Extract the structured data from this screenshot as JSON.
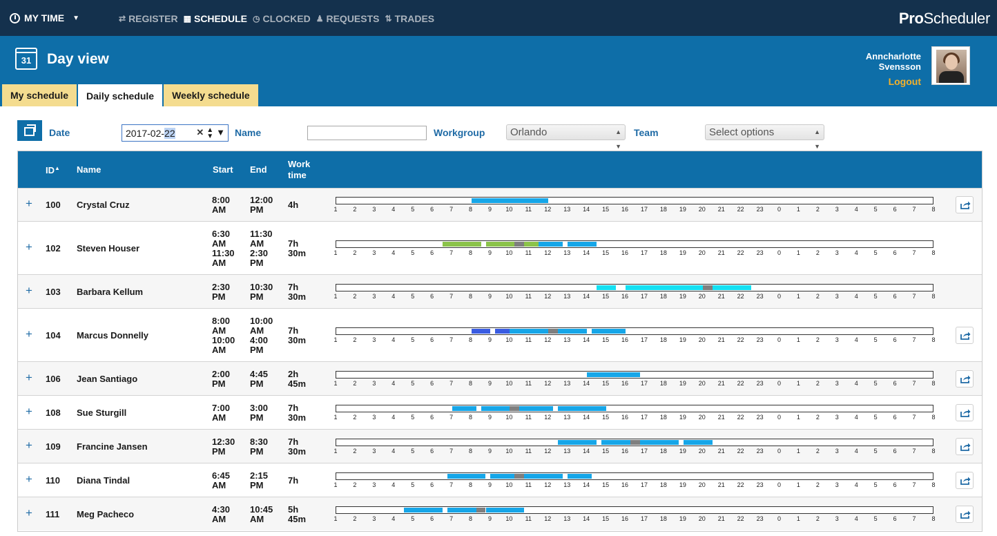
{
  "topbar": {
    "my_time": "MY TIME",
    "nav": [
      {
        "label": "REGISTER",
        "icon": "arrows-icon",
        "glyph": "⇄",
        "active": false
      },
      {
        "label": "SCHEDULE",
        "icon": "calendar-icon",
        "glyph": "▦",
        "active": true
      },
      {
        "label": "CLOCKED",
        "icon": "stopwatch-icon",
        "glyph": "◷",
        "active": false
      },
      {
        "label": "REQUESTS",
        "icon": "person-icon",
        "glyph": "♟",
        "active": false
      },
      {
        "label": "TRADES",
        "icon": "trades-icon",
        "glyph": "⇅",
        "active": false
      }
    ],
    "brand_bold": "Pro",
    "brand_rest": "Scheduler"
  },
  "header": {
    "calendar_day": "31",
    "title": "Day view",
    "user_first": "Anncharlotte",
    "user_last": "Svensson",
    "logout": "Logout"
  },
  "tabs": [
    {
      "label": "My schedule",
      "active": false
    },
    {
      "label": "Daily schedule",
      "active": true
    },
    {
      "label": "Weekly schedule",
      "active": false
    }
  ],
  "filters": {
    "date_label": "Date",
    "date_prefix": "2017-02-",
    "date_selected": "22",
    "name_label": "Name",
    "name_value": "",
    "workgroup_label": "Workgroup",
    "workgroup_value": "Orlando",
    "team_label": "Team",
    "team_placeholder": "Select options"
  },
  "table": {
    "columns": {
      "id": "ID",
      "name": "Name",
      "start": "Start",
      "end": "End",
      "work1": "Work",
      "work2": "time"
    },
    "tick_labels": [
      "1",
      "2",
      "3",
      "4",
      "5",
      "6",
      "7",
      "8",
      "9",
      "10",
      "11",
      "12",
      "13",
      "14",
      "15",
      "16",
      "17",
      "18",
      "19",
      "20",
      "21",
      "22",
      "23",
      "0",
      "1",
      "2",
      "3",
      "4",
      "5",
      "6",
      "7",
      "8"
    ],
    "colors": {
      "blue": "#16a6e8",
      "green": "#8bc34a",
      "cyan": "#14e0f2",
      "indigo": "#3a5ce2",
      "break": "#7f7f7f"
    },
    "rows": [
      {
        "id": "100",
        "name": "Crystal Cruz",
        "start": [
          "8:00",
          "AM"
        ],
        "end": [
          "12:00",
          "PM"
        ],
        "work": [
          "4h"
        ],
        "share": true,
        "segments": [
          {
            "from": 8,
            "to": 12,
            "color": "blue"
          }
        ]
      },
      {
        "id": "102",
        "name": "Steven Houser",
        "start": [
          "6:30",
          "AM",
          "11:30",
          "AM"
        ],
        "end": [
          "11:30",
          "AM",
          "2:30",
          "PM"
        ],
        "work": [
          "7h",
          "30m"
        ],
        "share": false,
        "segments": [
          {
            "from": 6.5,
            "to": 8.5,
            "color": "green"
          },
          {
            "from": 8.75,
            "to": 10.25,
            "color": "green"
          },
          {
            "from": 10.25,
            "to": 10.75,
            "color": "break"
          },
          {
            "from": 10.75,
            "to": 11.5,
            "color": "green"
          },
          {
            "from": 11.5,
            "to": 12.75,
            "color": "blue"
          },
          {
            "from": 13,
            "to": 14.5,
            "color": "blue"
          }
        ]
      },
      {
        "id": "103",
        "name": "Barbara Kellum",
        "start": [
          "2:30",
          "PM"
        ],
        "end": [
          "10:30",
          "PM"
        ],
        "work": [
          "7h",
          "30m"
        ],
        "share": false,
        "segments": [
          {
            "from": 14.5,
            "to": 15.5,
            "color": "cyan"
          },
          {
            "from": 16,
            "to": 20,
            "color": "cyan"
          },
          {
            "from": 20,
            "to": 20.5,
            "color": "break"
          },
          {
            "from": 20.5,
            "to": 22.5,
            "color": "cyan"
          }
        ]
      },
      {
        "id": "104",
        "name": "Marcus Donnelly",
        "start": [
          "8:00",
          "AM",
          "10:00",
          "AM"
        ],
        "end": [
          "10:00",
          "AM",
          "4:00",
          "PM"
        ],
        "work": [
          "7h",
          "30m"
        ],
        "share": true,
        "segments": [
          {
            "from": 8,
            "to": 9,
            "color": "indigo"
          },
          {
            "from": 9.25,
            "to": 10,
            "color": "indigo"
          },
          {
            "from": 10,
            "to": 12,
            "color": "blue"
          },
          {
            "from": 12,
            "to": 12.5,
            "color": "break"
          },
          {
            "from": 12.5,
            "to": 14,
            "color": "blue"
          },
          {
            "from": 14.25,
            "to": 16,
            "color": "blue"
          }
        ]
      },
      {
        "id": "106",
        "name": "Jean Santiago",
        "start": [
          "2:00",
          "PM"
        ],
        "end": [
          "4:45",
          "PM"
        ],
        "work": [
          "2h",
          "45m"
        ],
        "share": true,
        "segments": [
          {
            "from": 14,
            "to": 16.75,
            "color": "blue"
          }
        ]
      },
      {
        "id": "108",
        "name": "Sue Sturgill",
        "start": [
          "7:00",
          "AM"
        ],
        "end": [
          "3:00",
          "PM"
        ],
        "work": [
          "7h",
          "30m"
        ],
        "share": true,
        "segments": [
          {
            "from": 7,
            "to": 8.25,
            "color": "blue"
          },
          {
            "from": 8.5,
            "to": 10,
            "color": "blue"
          },
          {
            "from": 10,
            "to": 10.5,
            "color": "break"
          },
          {
            "from": 10.5,
            "to": 12.25,
            "color": "blue"
          },
          {
            "from": 12.5,
            "to": 15,
            "color": "blue"
          }
        ]
      },
      {
        "id": "109",
        "name": "Francine Jansen",
        "start": [
          "12:30",
          "PM"
        ],
        "end": [
          "8:30",
          "PM"
        ],
        "work": [
          "7h",
          "30m"
        ],
        "share": true,
        "segments": [
          {
            "from": 12.5,
            "to": 14.5,
            "color": "blue"
          },
          {
            "from": 14.75,
            "to": 16.25,
            "color": "blue"
          },
          {
            "from": 16.25,
            "to": 16.75,
            "color": "break"
          },
          {
            "from": 16.75,
            "to": 18.75,
            "color": "blue"
          },
          {
            "from": 19,
            "to": 20.5,
            "color": "blue"
          }
        ]
      },
      {
        "id": "110",
        "name": "Diana Tindal",
        "start": [
          "6:45",
          "AM"
        ],
        "end": [
          "2:15",
          "PM"
        ],
        "work": [
          "7h"
        ],
        "share": true,
        "segments": [
          {
            "from": 6.75,
            "to": 8.75,
            "color": "blue"
          },
          {
            "from": 9,
            "to": 10.25,
            "color": "blue"
          },
          {
            "from": 10.25,
            "to": 10.75,
            "color": "break"
          },
          {
            "from": 10.75,
            "to": 12.75,
            "color": "blue"
          },
          {
            "from": 13,
            "to": 14.25,
            "color": "blue"
          }
        ]
      },
      {
        "id": "111",
        "name": "Meg Pacheco",
        "start": [
          "4:30",
          "AM"
        ],
        "end": [
          "10:45",
          "AM"
        ],
        "work": [
          "5h",
          "45m"
        ],
        "share": true,
        "segments": [
          {
            "from": 4.5,
            "to": 6.5,
            "color": "blue"
          },
          {
            "from": 6.75,
            "to": 8.25,
            "color": "blue"
          },
          {
            "from": 8.25,
            "to": 8.75,
            "color": "break"
          },
          {
            "from": 8.75,
            "to": 10.75,
            "color": "blue"
          }
        ]
      }
    ]
  }
}
